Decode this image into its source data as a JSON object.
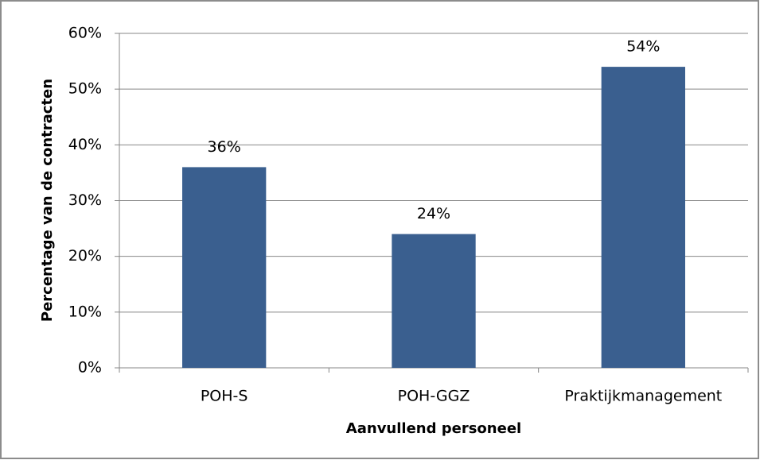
{
  "chart_data": {
    "type": "bar",
    "x_label": "Aanvullend personeel",
    "y_label": "Percentage van de contracten",
    "categories": [
      "POH-S",
      "POH-GGZ",
      "Praktijkmanagement"
    ],
    "values": [
      36,
      24,
      54
    ],
    "value_labels": [
      "36%",
      "24%",
      "54%"
    ],
    "color": "#3a5f8f",
    "ylim": [
      0,
      60
    ],
    "yticks": [
      {
        "value": 0,
        "label": "0%"
      },
      {
        "value": 10,
        "label": "10%"
      },
      {
        "value": 20,
        "label": "20%"
      },
      {
        "value": 30,
        "label": "30%"
      },
      {
        "value": 40,
        "label": "40%"
      },
      {
        "value": 50,
        "label": "50%"
      },
      {
        "value": 60,
        "label": "60%"
      }
    ],
    "grid": true
  }
}
